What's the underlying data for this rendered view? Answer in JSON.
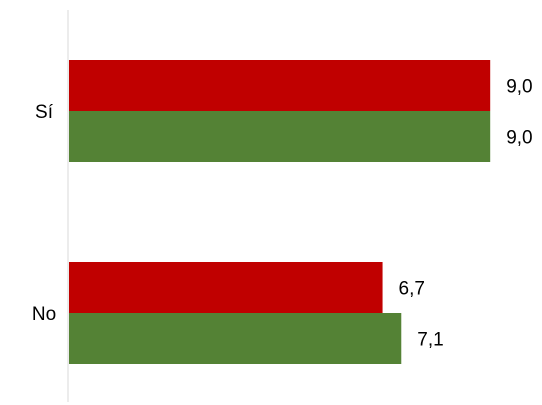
{
  "chart_data": {
    "type": "bar",
    "orientation": "horizontal",
    "categories": [
      "Sí",
      "No"
    ],
    "series": [
      {
        "values": [
          9.0,
          6.7
        ],
        "labels": [
          "9,0",
          "6,7"
        ],
        "color": "#c00000"
      },
      {
        "values": [
          9.0,
          7.1
        ],
        "labels": [
          "9,0",
          "7,1"
        ],
        "color": "#548235"
      }
    ],
    "xlim": [
      0,
      10
    ],
    "grid": false,
    "axis_color": "#d9d9d9"
  }
}
